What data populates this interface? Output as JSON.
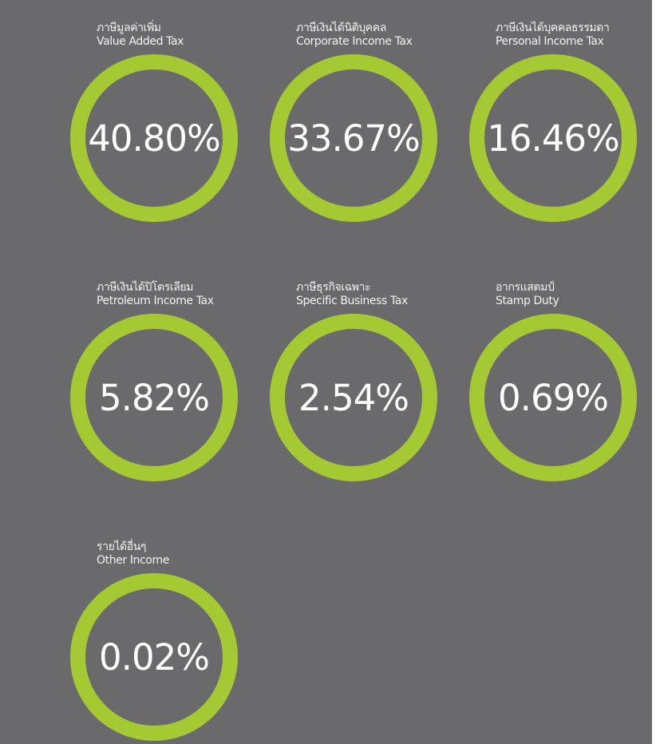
{
  "colors": {
    "background": "#6a6a6d",
    "ring": "#a4c933",
    "text": "#ffffff"
  },
  "items": [
    {
      "label_th": "ภาษีมูลค่าเพิ่ม",
      "label_en": "Value Added Tax",
      "value": "40.80%"
    },
    {
      "label_th": "ภาษีเงินได้นิติบุคคล",
      "label_en": "Corporate Income Tax",
      "value": "33.67%"
    },
    {
      "label_th": "ภาษีเงินได้บุคคลธรรมดา",
      "label_en": "Personal Income Tax",
      "value": "16.46%"
    },
    {
      "label_th": "ภาษีเงินได้ปิโตรเลียม",
      "label_en": "Petroleum Income Tax",
      "value": "5.82%"
    },
    {
      "label_th": "ภาษีธุรกิจเฉพาะ",
      "label_en": "Specific Business Tax",
      "value": "2.54%"
    },
    {
      "label_th": "อากรแสตมป์",
      "label_en": "Stamp Duty",
      "value": "0.69%"
    },
    {
      "label_th": "รายได้อื่นๆ",
      "label_en": "Other Income",
      "value": "0.02%"
    }
  ]
}
